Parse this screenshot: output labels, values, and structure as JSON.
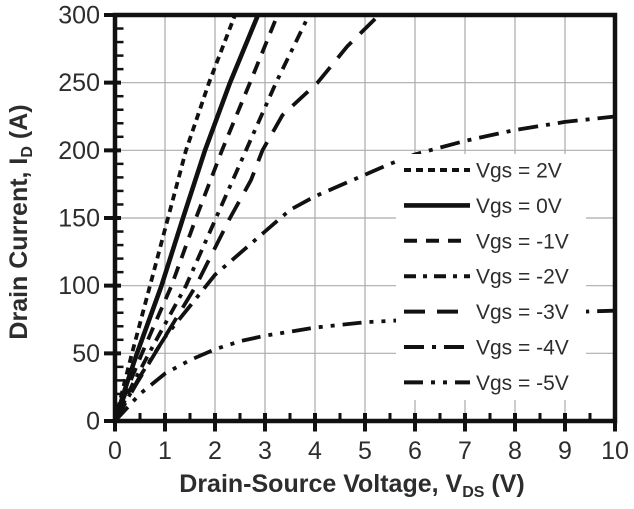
{
  "chart_data": {
    "type": "line",
    "title": "",
    "xlabel": {
      "pre": "Drain-Source Voltage, V",
      "sub": "DS",
      "post": " (V)"
    },
    "ylabel": {
      "pre": "Drain Current, I",
      "sub": "D",
      "post": " (A)"
    },
    "xlim": [
      0,
      10
    ],
    "ylim": [
      0,
      300
    ],
    "x_major_ticks": [
      0,
      1,
      2,
      3,
      4,
      5,
      6,
      7,
      8,
      9,
      10
    ],
    "x_minor_step": 0.5,
    "y_major_ticks": [
      0,
      50,
      100,
      150,
      200,
      250,
      300
    ],
    "y_minor_step": 10,
    "grid": true,
    "legend_position": "inside-right",
    "series": [
      {
        "name": "Vgs = 2V",
        "line_style": "fine-dash",
        "dash": [
          7,
          5
        ],
        "points": [
          [
            0,
            0
          ],
          [
            0.18,
            27
          ],
          [
            0.34,
            50
          ],
          [
            0.7,
            100
          ],
          [
            1.06,
            150
          ],
          [
            1.42,
            200
          ],
          [
            1.88,
            250
          ],
          [
            2.4,
            300
          ],
          [
            2.55,
            318
          ]
        ]
      },
      {
        "name": "Vgs = 0V",
        "line_style": "solid",
        "dash": [],
        "points": [
          [
            0,
            0
          ],
          [
            0.23,
            27
          ],
          [
            0.44,
            50
          ],
          [
            0.93,
            100
          ],
          [
            1.36,
            150
          ],
          [
            1.8,
            200
          ],
          [
            2.3,
            250
          ],
          [
            2.86,
            300
          ],
          [
            3.02,
            318
          ]
        ]
      },
      {
        "name": "Vgs = -1V",
        "line_style": "dash",
        "dash": [
          13,
          9
        ],
        "points": [
          [
            0,
            0
          ],
          [
            0.28,
            27
          ],
          [
            0.54,
            50
          ],
          [
            1.13,
            100
          ],
          [
            1.62,
            150
          ],
          [
            2.14,
            200
          ],
          [
            2.7,
            250
          ],
          [
            3.25,
            300
          ],
          [
            3.42,
            316
          ]
        ]
      },
      {
        "name": "Vgs = -2V",
        "line_style": "dash-dot",
        "dash": [
          12,
          7,
          4,
          7
        ],
        "points": [
          [
            0,
            0
          ],
          [
            0.35,
            27
          ],
          [
            0.68,
            50
          ],
          [
            1.42,
            100
          ],
          [
            2.02,
            150
          ],
          [
            2.62,
            200
          ],
          [
            3.22,
            250
          ],
          [
            3.88,
            300
          ],
          [
            4.05,
            313
          ]
        ]
      },
      {
        "name": "Vgs = -3V",
        "line_style": "long-dash",
        "dash": [
          21,
          12
        ],
        "points": [
          [
            0,
            0
          ],
          [
            0.42,
            27
          ],
          [
            0.8,
            50
          ],
          [
            1.62,
            100
          ],
          [
            2.3,
            150
          ],
          [
            2.72,
            178
          ],
          [
            2.95,
            200
          ],
          [
            3.35,
            226
          ],
          [
            4.05,
            250
          ],
          [
            4.65,
            277
          ],
          [
            5.28,
            300
          ],
          [
            5.45,
            310
          ]
        ]
      },
      {
        "name": "Vgs = -4V",
        "line_style": "long-dash-dot",
        "dash": [
          20,
          8,
          4,
          8
        ],
        "points": [
          [
            0,
            0
          ],
          [
            0.5,
            33
          ],
          [
            1.0,
            62
          ],
          [
            1.5,
            85
          ],
          [
            2.0,
            108
          ],
          [
            2.5,
            124
          ],
          [
            3.0,
            140
          ],
          [
            3.5,
            156
          ],
          [
            4.0,
            166
          ],
          [
            4.5,
            174
          ],
          [
            5.0,
            182
          ],
          [
            5.5,
            190
          ],
          [
            6.0,
            197
          ],
          [
            6.5,
            202
          ],
          [
            7.0,
            207
          ],
          [
            7.5,
            211
          ],
          [
            8.0,
            215
          ],
          [
            8.5,
            218
          ],
          [
            9.0,
            221
          ],
          [
            9.5,
            223
          ],
          [
            10.0,
            225
          ]
        ]
      },
      {
        "name": "Vgs = -5V",
        "line_style": "long-dash-dot-dot",
        "dash": [
          19,
          8,
          4,
          8,
          4,
          8
        ],
        "points": [
          [
            0,
            0
          ],
          [
            0.5,
            20
          ],
          [
            1.0,
            35
          ],
          [
            1.5,
            45
          ],
          [
            2.0,
            53
          ],
          [
            2.5,
            59
          ],
          [
            3.0,
            63
          ],
          [
            3.5,
            66
          ],
          [
            4.0,
            69
          ],
          [
            4.5,
            71
          ],
          [
            5.0,
            73
          ],
          [
            5.5,
            74
          ],
          [
            6.0,
            75
          ],
          [
            6.5,
            76
          ],
          [
            7.0,
            77
          ],
          [
            7.5,
            78
          ],
          [
            8.0,
            79
          ],
          [
            9.0,
            80
          ],
          [
            9.5,
            81
          ],
          [
            10.0,
            81.5
          ]
        ]
      }
    ]
  },
  "colors": {
    "background": "#ffffff",
    "curve": "#111111",
    "axis": "#111111",
    "grid": "#ababab",
    "text": "#2d2d2d",
    "legend_background": "#ffffff"
  }
}
